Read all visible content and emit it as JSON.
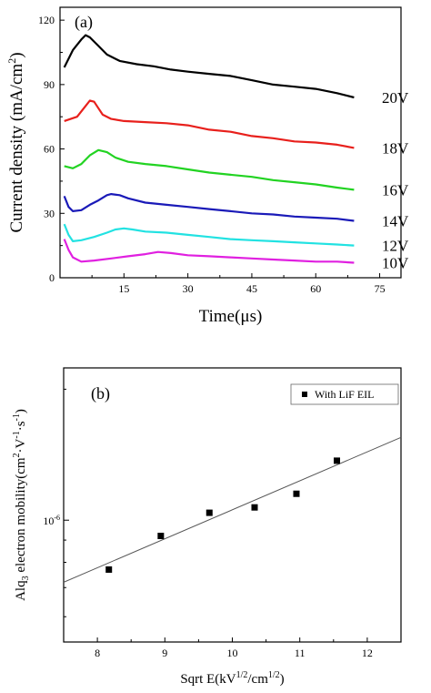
{
  "chart_data": [
    {
      "type": "line",
      "panel_label": "(a)",
      "xlabel": "Time(μs)",
      "ylabel": "Current density (mA/cm",
      "ylabel_sup": "2",
      "ylabel_end": ")",
      "xlim": [
        0,
        80
      ],
      "ylim": [
        0,
        126
      ],
      "xticks": [
        "15",
        "30",
        "45",
        "60",
        "75"
      ],
      "yticks": [
        "0",
        "30",
        "60",
        "90",
        "120"
      ],
      "grid": false,
      "series": [
        {
          "name": "20V",
          "color": "#000000",
          "x": [
            1,
            3,
            5,
            6,
            7,
            9,
            11,
            14,
            18,
            22,
            26,
            30,
            35,
            40,
            45,
            50,
            55,
            60,
            65,
            69
          ],
          "y": [
            98,
            106,
            111,
            113,
            112,
            108,
            104,
            101,
            99.5,
            98.5,
            97,
            96,
            95,
            94,
            92,
            90,
            89,
            88,
            86,
            84
          ]
        },
        {
          "name": "18V",
          "color": "#e8201c",
          "x": [
            1,
            4,
            6,
            7,
            8,
            9,
            10,
            12,
            15,
            20,
            25,
            30,
            35,
            40,
            45,
            50,
            55,
            60,
            65,
            69
          ],
          "y": [
            73,
            75,
            80,
            82.5,
            82,
            79,
            76,
            74,
            73,
            72.5,
            72,
            71,
            69,
            68,
            66,
            65,
            63.5,
            63,
            62,
            60.5
          ]
        },
        {
          "name": "16V",
          "color": "#22d322",
          "x": [
            1,
            3,
            5,
            7,
            9,
            11,
            13,
            16,
            20,
            25,
            30,
            35,
            40,
            45,
            50,
            55,
            60,
            65,
            69
          ],
          "y": [
            52,
            51,
            53,
            57,
            59.5,
            58.5,
            56,
            54,
            53,
            52,
            50.5,
            49,
            48,
            47,
            45.5,
            44.5,
            43.5,
            42,
            41
          ]
        },
        {
          "name": "14V",
          "color": "#1a1ab8",
          "x": [
            1,
            2,
            3,
            5,
            7,
            9,
            11,
            12,
            14,
            16,
            20,
            25,
            30,
            35,
            40,
            45,
            50,
            55,
            60,
            65,
            69
          ],
          "y": [
            38,
            33,
            31,
            31.5,
            34,
            36,
            38.5,
            39,
            38.5,
            37,
            35,
            34,
            33,
            32,
            31,
            30,
            29.5,
            28.5,
            28,
            27.5,
            26.5
          ]
        },
        {
          "name": "12V",
          "color": "#22e2e2",
          "x": [
            1,
            2,
            3,
            5,
            8,
            11,
            13,
            15,
            17,
            20,
            25,
            30,
            35,
            40,
            45,
            50,
            55,
            60,
            65,
            69
          ],
          "y": [
            25,
            20,
            17,
            17.5,
            19,
            21,
            22.5,
            23,
            22.5,
            21.5,
            21,
            20,
            19,
            18,
            17.5,
            17,
            16.5,
            16,
            15.5,
            15
          ]
        },
        {
          "name": "10V",
          "color": "#e020e0",
          "x": [
            1,
            2,
            3,
            5,
            8,
            12,
            16,
            20,
            23,
            26,
            30,
            35,
            40,
            45,
            50,
            55,
            60,
            65,
            69
          ],
          "y": [
            18,
            13,
            9.5,
            7.5,
            8,
            9,
            10,
            11,
            12,
            11.5,
            10.5,
            10,
            9.5,
            9,
            8.5,
            8,
            7.5,
            7.5,
            7
          ]
        }
      ]
    },
    {
      "type": "scatter",
      "panel_label": "(b)",
      "xlabel": "Sqrt E(kV",
      "xlabel_sup1": "1/2",
      "xlabel_mid": "/cm",
      "xlabel_sup2": "1/2",
      "xlabel_end": ")",
      "ylabel_pre": "Alq",
      "ylabel_sub": "3",
      "ylabel_main": " electron mobility(cm",
      "ylabel_sup1": "2",
      "ylabel_mid1": "·V",
      "ylabel_sup2": "-1",
      "ylabel_mid2": "·s",
      "ylabel_sup3": "-1",
      "ylabel_end": ")",
      "xlim": [
        7.5,
        12.5
      ],
      "ylim_log10": [
        -6.28,
        -5.65
      ],
      "log_y": true,
      "xticks": [
        "8",
        "9",
        "10",
        "11",
        "12"
      ],
      "ytick_label_base": "10",
      "ytick_label_exp": "-6",
      "legend": {
        "label": "With LiF EIL",
        "position": "top-right"
      },
      "series": [
        {
          "name": "With LiF EIL",
          "x": [
            8.17,
            8.94,
            9.66,
            10.33,
            10.95,
            11.55
          ],
          "y": [
            7.7e-07,
            9.2e-07,
            1.04e-06,
            1.07e-06,
            1.15e-06,
            1.37e-06
          ]
        }
      ],
      "fit_line": {
        "x": [
          7.5,
          12.5
        ],
        "y": [
          7.2e-07,
          1.55e-06
        ]
      }
    }
  ]
}
